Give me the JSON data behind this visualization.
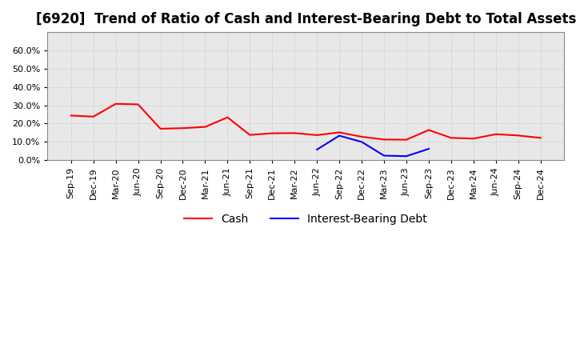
{
  "title": "[6920]  Trend of Ratio of Cash and Interest-Bearing Debt to Total Assets",
  "cash_labels": [
    "Sep-19",
    "Dec-19",
    "Mar-20",
    "Jun-20",
    "Sep-20",
    "Dec-20",
    "Mar-21",
    "Jun-21",
    "Sep-21",
    "Dec-21",
    "Mar-22",
    "Jun-22",
    "Sep-22",
    "Dec-22",
    "Mar-23",
    "Jun-23",
    "Sep-23",
    "Dec-23",
    "Mar-24",
    "Jun-24",
    "Sep-24",
    "Dec-24"
  ],
  "cash_values": [
    0.244,
    0.238,
    0.308,
    0.305,
    0.172,
    0.175,
    0.182,
    0.234,
    0.138,
    0.147,
    0.148,
    0.137,
    0.152,
    0.128,
    0.113,
    0.112,
    0.165,
    0.122,
    0.118,
    0.142,
    0.135,
    0.122
  ],
  "debt_labels": [
    "Jun-22",
    "Sep-22",
    "Dec-22",
    "Mar-23",
    "Jun-23",
    "Sep-23"
  ],
  "debt_values": [
    0.058,
    0.134,
    0.1,
    0.025,
    0.022,
    0.062
  ],
  "cash_color": "#FF0000",
  "debt_color": "#0000FF",
  "ylim": [
    0.0,
    0.7
  ],
  "yticks": [
    0.0,
    0.1,
    0.2,
    0.3,
    0.4,
    0.5,
    0.6
  ],
  "background_color": "#FFFFFF",
  "plot_bg_color": "#E8E8E8",
  "grid_color": "#BBBBBB",
  "legend_cash": "Cash",
  "legend_debt": "Interest-Bearing Debt",
  "title_fontsize": 12,
  "tick_fontsize": 8,
  "legend_fontsize": 10
}
